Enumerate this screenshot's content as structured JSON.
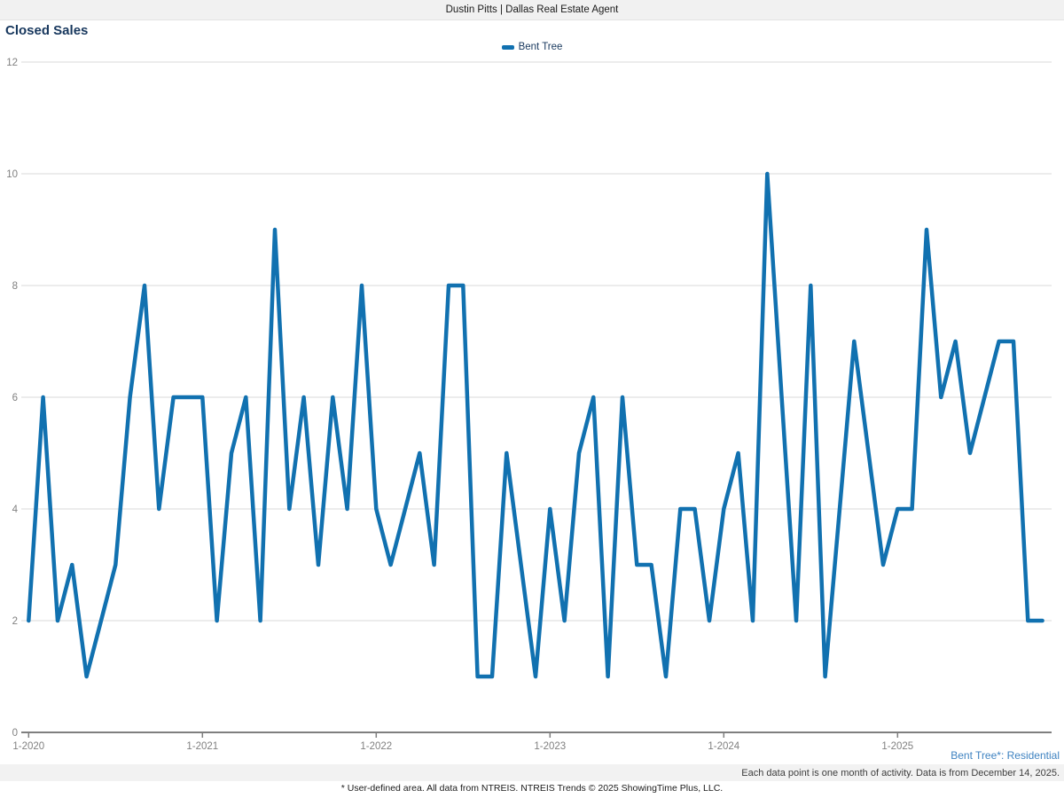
{
  "header": {
    "title": "Dustin Pitts | Dallas Real Estate Agent"
  },
  "chart": {
    "title": "Closed Sales",
    "legend_label": "Bent Tree"
  },
  "chart_data": {
    "type": "line",
    "title": "Closed Sales",
    "series": [
      {
        "name": "Bent Tree",
        "start_month": "1-2020",
        "end_month": "11-2025",
        "cadence": "monthly",
        "values": [
          2,
          6,
          2,
          3,
          1,
          2,
          3,
          6,
          8,
          4,
          6,
          6,
          6,
          2,
          5,
          6,
          2,
          9,
          4,
          6,
          3,
          6,
          4,
          8,
          4,
          3,
          4,
          5,
          3,
          8,
          8,
          1,
          1,
          5,
          3,
          1,
          4,
          2,
          5,
          6,
          1,
          6,
          3,
          3,
          1,
          4,
          4,
          2,
          4,
          5,
          2,
          10,
          6,
          2,
          8,
          1,
          4,
          7,
          5,
          3,
          4,
          4,
          9,
          6,
          7,
          5,
          6,
          7,
          7,
          2,
          2
        ]
      }
    ],
    "x_tick_labels": [
      "1-2020",
      "1-2021",
      "1-2022",
      "1-2023",
      "1-2024",
      "1-2025"
    ],
    "y_ticks": [
      0,
      2,
      4,
      6,
      8,
      10,
      12
    ],
    "ylim": [
      0,
      12
    ],
    "grid": "horizontal",
    "legend_position": "top-center",
    "colors": {
      "line": "#1171b0",
      "grid": "#d9d9d9",
      "axis": "#7f7f7f",
      "tick_label": "#808080"
    }
  },
  "footer": {
    "series_note": "Bent Tree*: Residential",
    "data_note": "Each data point is one month of activity. Data is from December 14, 2025.",
    "disclaimer": "* User-defined area. All data from NTREIS. NTREIS Trends © 2025 ShowingTime Plus, LLC."
  }
}
